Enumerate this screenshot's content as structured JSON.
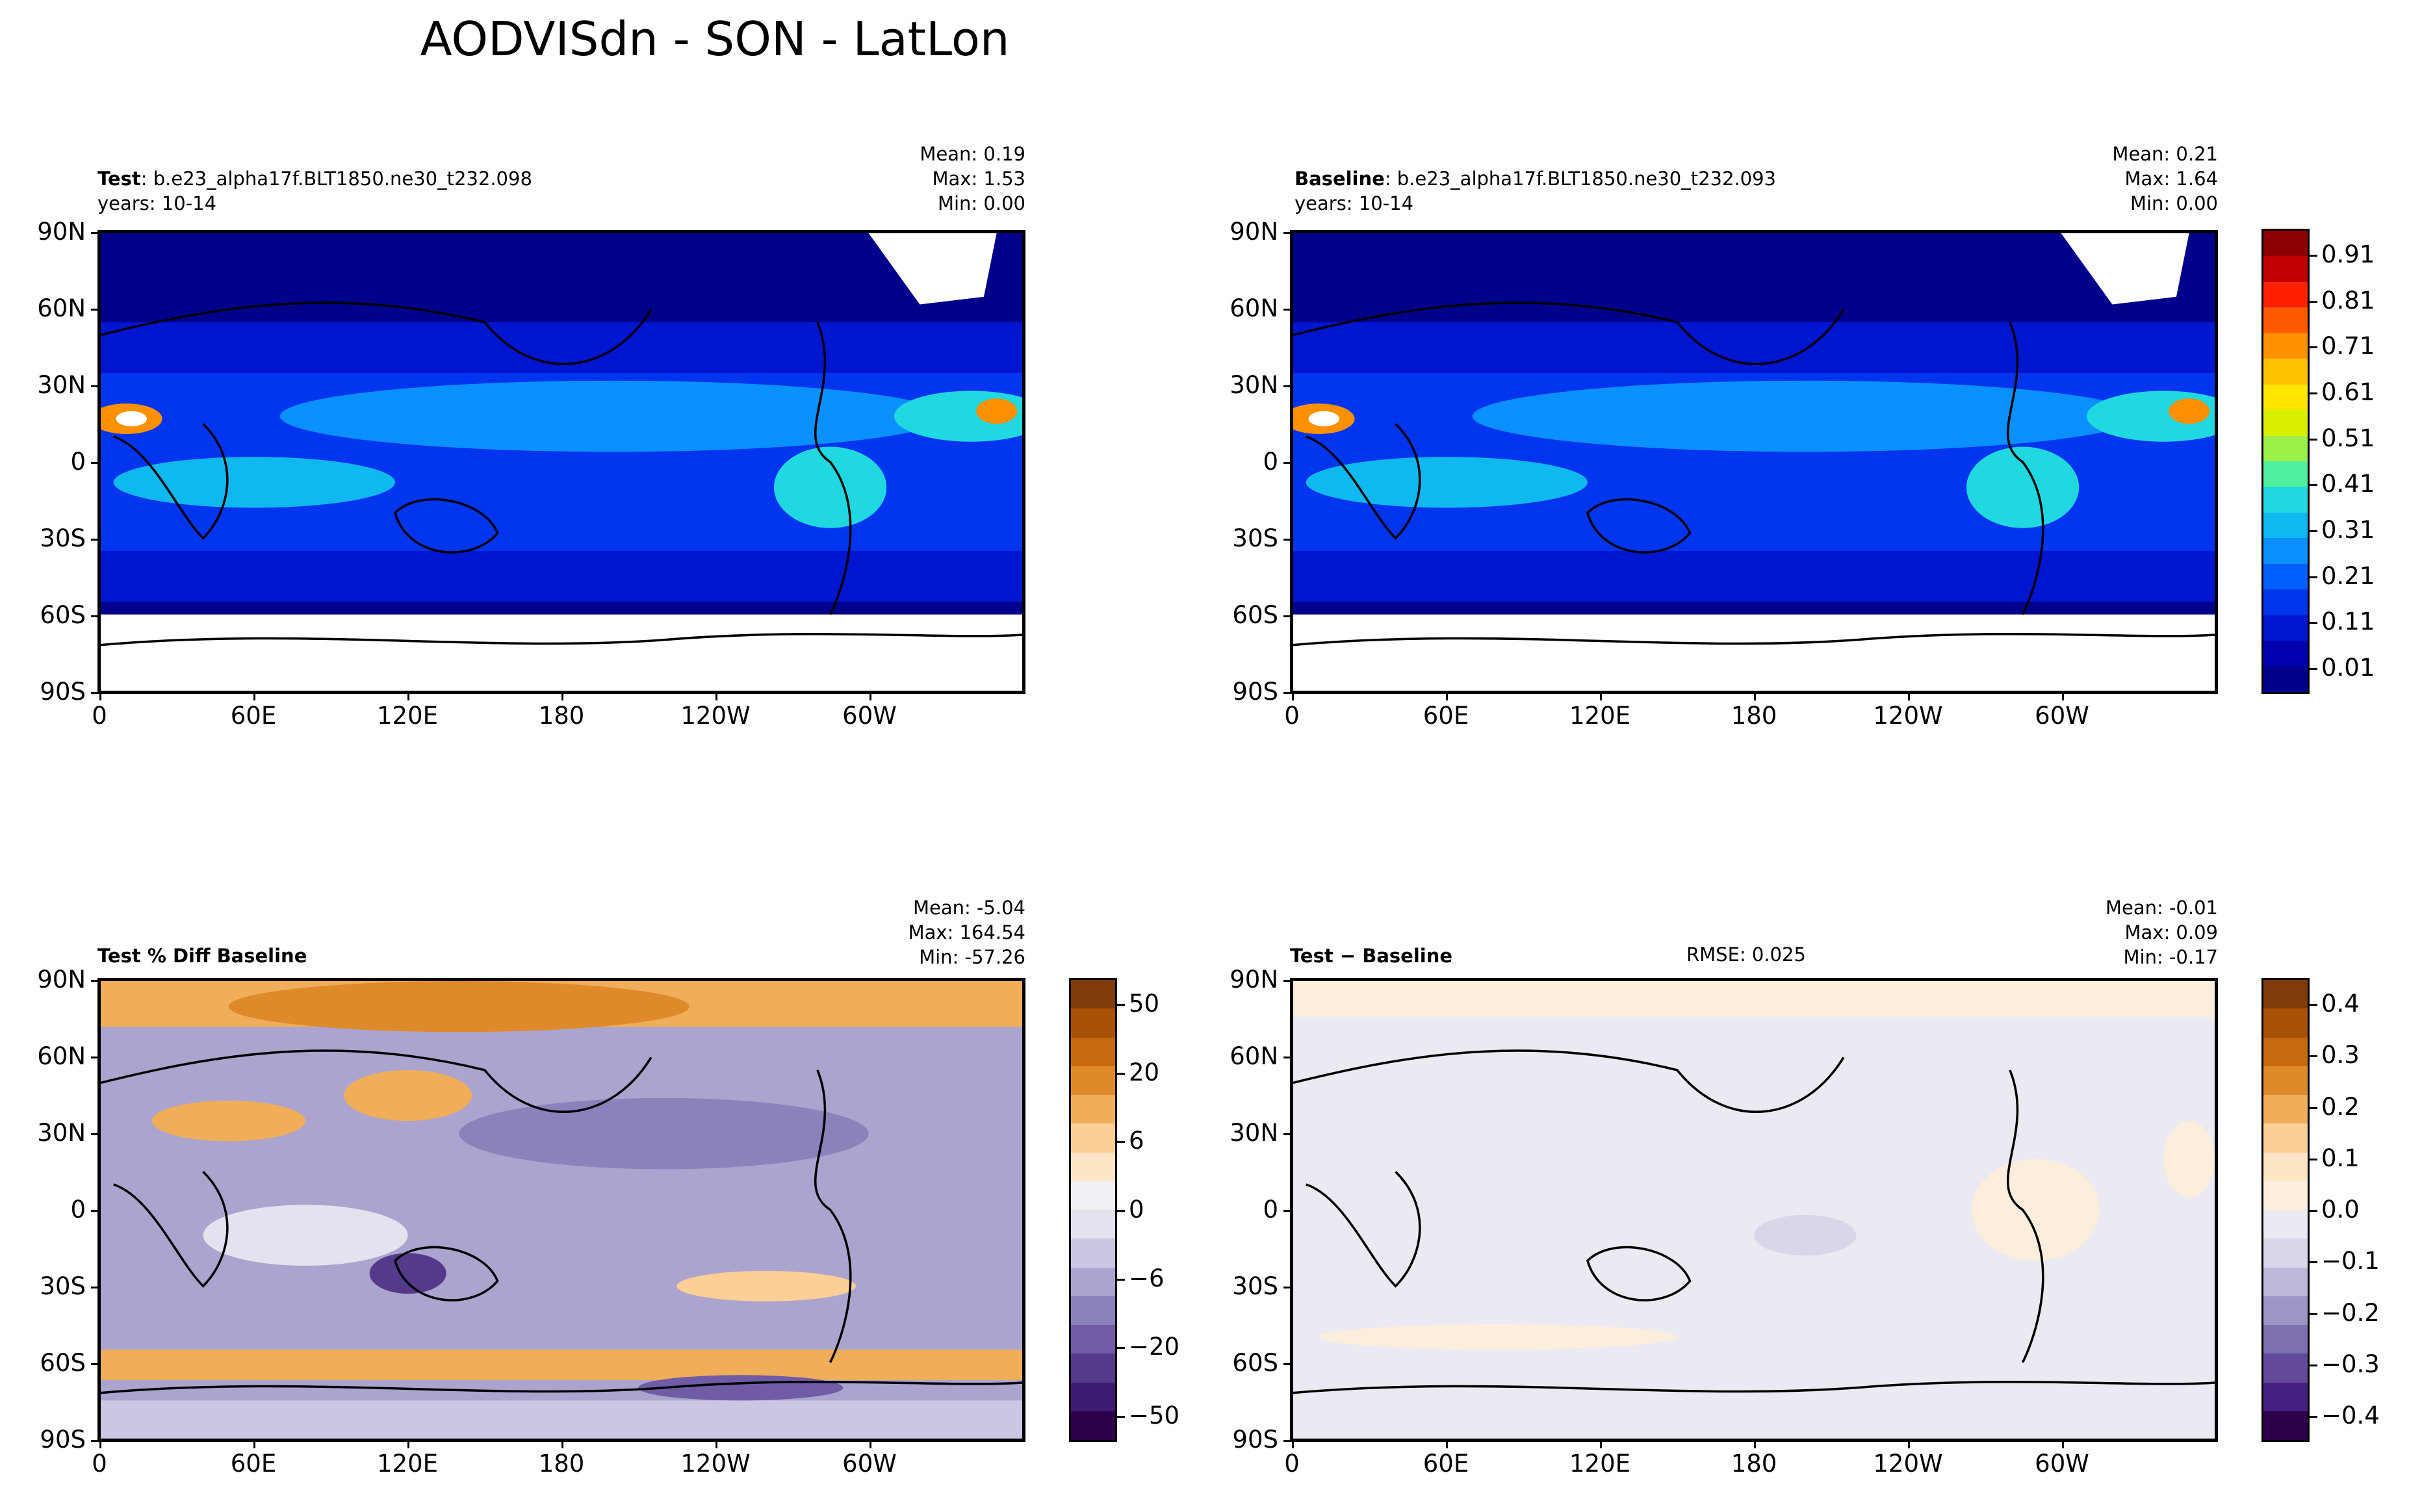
{
  "figure_title": "AODVISdn - SON - LatLon",
  "x_ticks": [
    "0",
    "60E",
    "120E",
    "180",
    "120W",
    "60W"
  ],
  "y_ticks": [
    "90N",
    "60N",
    "30N",
    "0",
    "30S",
    "60S",
    "90S"
  ],
  "panels": [
    {
      "id": "test",
      "label": "Test",
      "case": ": b.e23_alpha17f.BLT1850.ne30_t232.098",
      "years": "years: 10-14",
      "stats": [
        "Mean:  0.19",
        "Max:  1.53",
        "Min:  0.00"
      ],
      "colormap": "aod"
    },
    {
      "id": "baseline",
      "label": "Baseline",
      "case": ": b.e23_alpha17f.BLT1850.ne30_t232.093",
      "years": "years: 10-14",
      "stats": [
        "Mean:  0.21",
        "Max:  1.64",
        "Min:  0.00"
      ],
      "colormap": "aod"
    },
    {
      "id": "pct_diff",
      "label": "Test % Diff Baseline",
      "stats": [
        "Mean: -5.04",
        "Max: 164.54",
        "Min: -57.26"
      ],
      "colormap": "diff"
    },
    {
      "id": "diff",
      "label": "Test − Baseline",
      "rmse": "RMSE: 0.025",
      "stats": [
        "Mean: -0.01",
        "Max:  0.09",
        "Min: -0.17"
      ],
      "colormap": "diff"
    }
  ],
  "colorbars": {
    "aod": {
      "ticks": [
        "0.91",
        "0.81",
        "0.71",
        "0.61",
        "0.51",
        "0.41",
        "0.31",
        "0.21",
        "0.11",
        "0.01"
      ],
      "colors": [
        "#8b0000",
        "#c00000",
        "#ff2000",
        "#ff5a00",
        "#ff9000",
        "#ffc000",
        "#ffe600",
        "#d8f000",
        "#9cf04a",
        "#50f0a0",
        "#20d8e0",
        "#10b8f0",
        "#0a90ff",
        "#0060ff",
        "#0035f0",
        "#0015d0",
        "#0000b0",
        "#00008a"
      ]
    },
    "pct_diff": {
      "ticks": [
        "50",
        "20",
        "6",
        "0",
        "−6",
        "−20",
        "−50"
      ],
      "colors": [
        "#7f3b08",
        "#a85108",
        "#c66a10",
        "#de8a2a",
        "#f0ad5a",
        "#fbcf95",
        "#fde6c6",
        "#f2eff4",
        "#e4e2ef",
        "#cac7e2",
        "#aaa4cf",
        "#8b81bb",
        "#6f5ca5",
        "#553a8c",
        "#3f1c74",
        "#2d004b"
      ]
    },
    "diff": {
      "ticks": [
        "0.4",
        "0.3",
        "0.2",
        "0.1",
        "0.0",
        "−0.1",
        "−0.2",
        "−0.3",
        "−0.4"
      ],
      "colors": [
        "#7f3b08",
        "#a85108",
        "#c66a10",
        "#de8a2a",
        "#f0ad5a",
        "#fbcf95",
        "#fde6c6",
        "#fbeedd",
        "#ebeaf3",
        "#d9d6ea",
        "#bdb8d9",
        "#9d95c6",
        "#7f70b0",
        "#62499a",
        "#471f80",
        "#2d004b"
      ]
    }
  }
}
